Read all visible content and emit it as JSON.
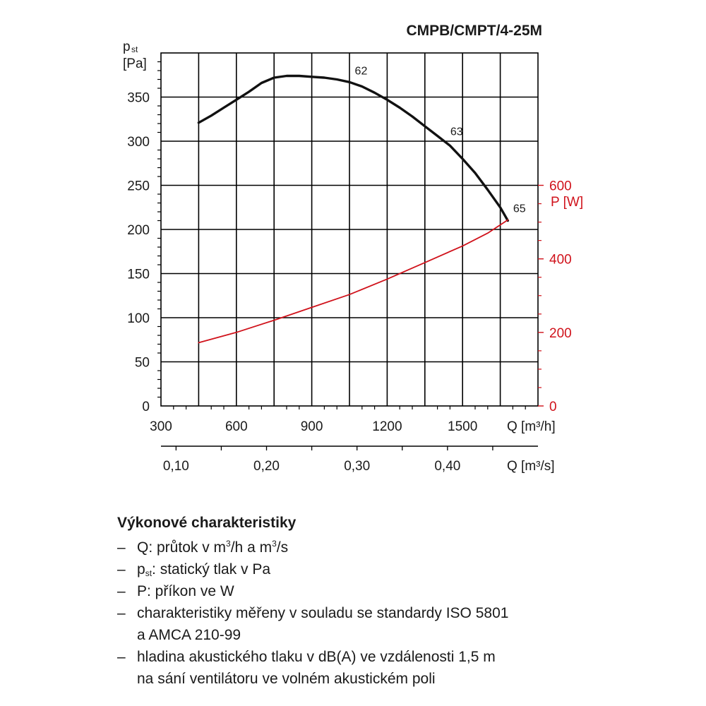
{
  "chart_data": {
    "type": "line",
    "title": "CMPB/CMPT/4-25M",
    "x": {
      "label_main": "Q",
      "label_unit": "[m³/h]",
      "ticks": [
        300,
        600,
        900,
        1200,
        1500
      ],
      "range": [
        300,
        1800
      ]
    },
    "x2": {
      "label_main": "Q",
      "label_unit": "[m³/s]",
      "ticks": [
        0.1,
        0.2,
        0.3,
        0.4
      ],
      "tick_labels": [
        "0,10",
        "0,20",
        "0,30",
        "0,40"
      ],
      "minor_step": 0.05
    },
    "y_left": {
      "label_main": "p",
      "label_sub": "st",
      "label_unit": "[Pa]",
      "range": [
        0,
        400
      ],
      "ticks": [
        0,
        50,
        100,
        150,
        200,
        250,
        300,
        350
      ]
    },
    "y_right": {
      "label": "P [W]",
      "color": "#d0121b",
      "range": [
        0,
        960
      ],
      "ticks": [
        0,
        200,
        400,
        600
      ]
    },
    "grid": true,
    "series": [
      {
        "axis": "left",
        "color": "#111111",
        "x": [
          450,
          500,
          550,
          600,
          650,
          700,
          750,
          800,
          850,
          900,
          950,
          1000,
          1050,
          1100,
          1150,
          1200,
          1250,
          1300,
          1350,
          1400,
          1450,
          1500,
          1550,
          1600,
          1650,
          1680
        ],
        "y": [
          321,
          329,
          338,
          347,
          356,
          366,
          372,
          374,
          374,
          373,
          372,
          370,
          367,
          362,
          355,
          347,
          338,
          328,
          317,
          306,
          295,
          280,
          264,
          245,
          225,
          210
        ],
        "markers": [
          {
            "x": 1060,
            "label": "62"
          },
          {
            "x": 1440,
            "label": "63"
          },
          {
            "x": 1690,
            "label": "65"
          }
        ]
      },
      {
        "axis": "right",
        "color": "#d0121b",
        "x": [
          450,
          600,
          750,
          900,
          1050,
          1200,
          1350,
          1500,
          1600,
          1680
        ],
        "y": [
          172,
          200,
          233,
          268,
          303,
          345,
          390,
          435,
          470,
          506
        ]
      }
    ]
  },
  "legend": {
    "heading": "Výkonové charakteristiky",
    "dash": "–",
    "q_prefix": "Q: průtok v m",
    "q_mid": "/h a m",
    "q_end": "/s",
    "sup3": "3",
    "p_main": "p",
    "p_sub": "st",
    "p_end": ": statický tlak v Pa",
    "power": "P: příkon ve W",
    "iso_line1": "charakteristiky měřeny v souladu se standardy ISO 5801",
    "iso_line2": "a AMCA 210-99",
    "noise_line1": "hladina akustického tlaku v dB(A) ve vzdálenosti 1,5 m",
    "noise_line2": "na sání ventilátoru ve volném akustickém poli"
  }
}
